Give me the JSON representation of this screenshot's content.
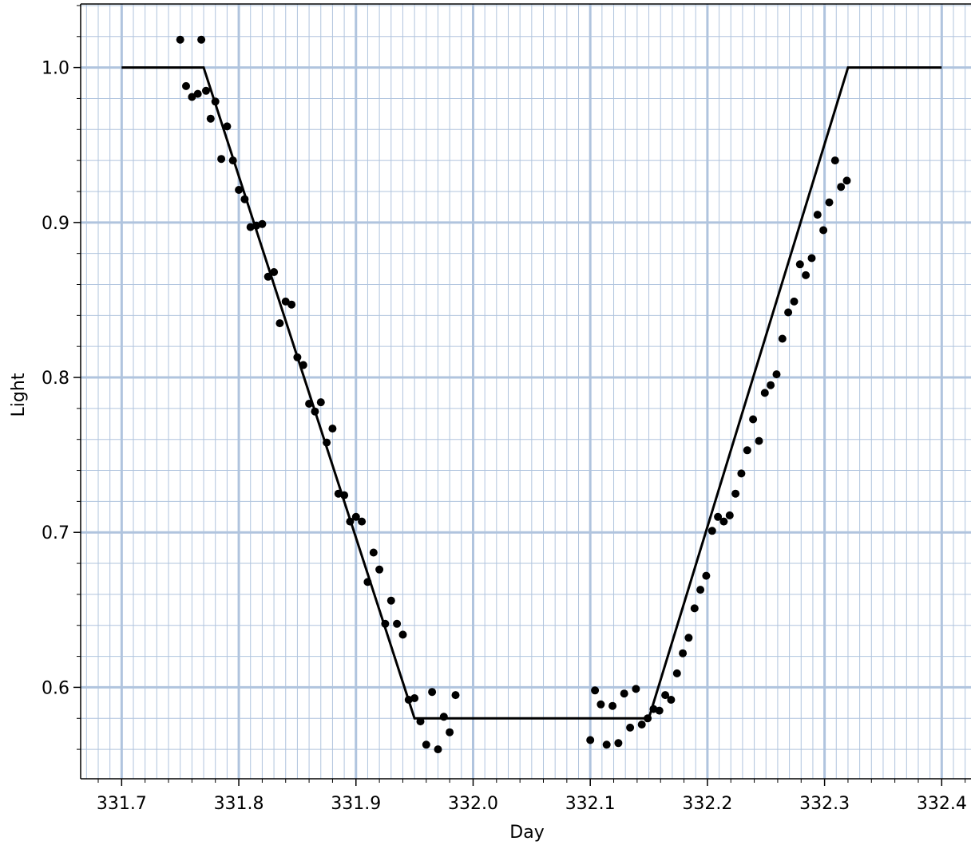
{
  "chart_data": {
    "type": "scatter",
    "title": "",
    "xlabel": "Day",
    "ylabel": "Light",
    "xlim": [
      331.665,
      332.425
    ],
    "ylim": [
      0.541,
      1.041
    ],
    "grid": true,
    "grid_color": "#b0c4de",
    "x_ticks": [
      "331.7",
      "331.8",
      "331.9",
      "332.0",
      "332.1",
      "332.2",
      "332.3",
      "332.4"
    ],
    "y_ticks": [
      "0.6",
      "0.7",
      "0.8",
      "0.9",
      "1.0"
    ],
    "model_line": {
      "x": [
        331.7,
        331.77,
        331.95,
        332.15,
        332.32,
        332.4
      ],
      "y": [
        1.0,
        1.0,
        0.58,
        0.58,
        1.0,
        1.0
      ]
    },
    "points": {
      "x": [
        331.75,
        331.755,
        331.76,
        331.765,
        331.768,
        331.772,
        331.776,
        331.78,
        331.785,
        331.79,
        331.795,
        331.8,
        331.805,
        331.81,
        331.815,
        331.82,
        331.825,
        331.83,
        331.835,
        331.84,
        331.845,
        331.85,
        331.855,
        331.86,
        331.865,
        331.87,
        331.875,
        331.88,
        331.885,
        331.89,
        331.895,
        331.9,
        331.905,
        331.91,
        331.915,
        331.92,
        331.925,
        331.93,
        331.935,
        331.94,
        331.945,
        331.95,
        331.955,
        331.96,
        331.965,
        331.97,
        331.975,
        331.98,
        331.985,
        332.1,
        332.104,
        332.109,
        332.114,
        332.119,
        332.124,
        332.129,
        332.134,
        332.139,
        332.144,
        332.149,
        332.154,
        332.159,
        332.164,
        332.169,
        332.174,
        332.179,
        332.184,
        332.189,
        332.194,
        332.199,
        332.204,
        332.209,
        332.214,
        332.219,
        332.224,
        332.229,
        332.234,
        332.239,
        332.244,
        332.249,
        332.254,
        332.259,
        332.264,
        332.269,
        332.274,
        332.279,
        332.284,
        332.289,
        332.294,
        332.299,
        332.304,
        332.309,
        332.314,
        332.319
      ],
      "y": [
        1.018,
        0.988,
        0.981,
        0.983,
        1.018,
        0.985,
        0.967,
        0.978,
        0.941,
        0.962,
        0.94,
        0.921,
        0.915,
        0.897,
        0.898,
        0.899,
        0.865,
        0.868,
        0.835,
        0.849,
        0.847,
        0.813,
        0.808,
        0.783,
        0.778,
        0.784,
        0.758,
        0.767,
        0.725,
        0.724,
        0.707,
        0.71,
        0.707,
        0.668,
        0.687,
        0.676,
        0.641,
        0.656,
        0.641,
        0.634,
        0.592,
        0.593,
        0.578,
        0.563,
        0.597,
        0.56,
        0.581,
        0.571,
        0.595,
        0.566,
        0.598,
        0.589,
        0.563,
        0.588,
        0.564,
        0.596,
        0.574,
        0.599,
        0.576,
        0.58,
        0.586,
        0.585,
        0.595,
        0.592,
        0.609,
        0.622,
        0.632,
        0.651,
        0.663,
        0.672,
        0.701,
        0.71,
        0.707,
        0.711,
        0.725,
        0.738,
        0.753,
        0.773,
        0.759,
        0.79,
        0.795,
        0.802,
        0.825,
        0.842,
        0.849,
        0.873,
        0.866,
        0.877,
        0.905,
        0.895,
        0.913,
        0.94,
        0.923,
        0.927
      ]
    }
  }
}
